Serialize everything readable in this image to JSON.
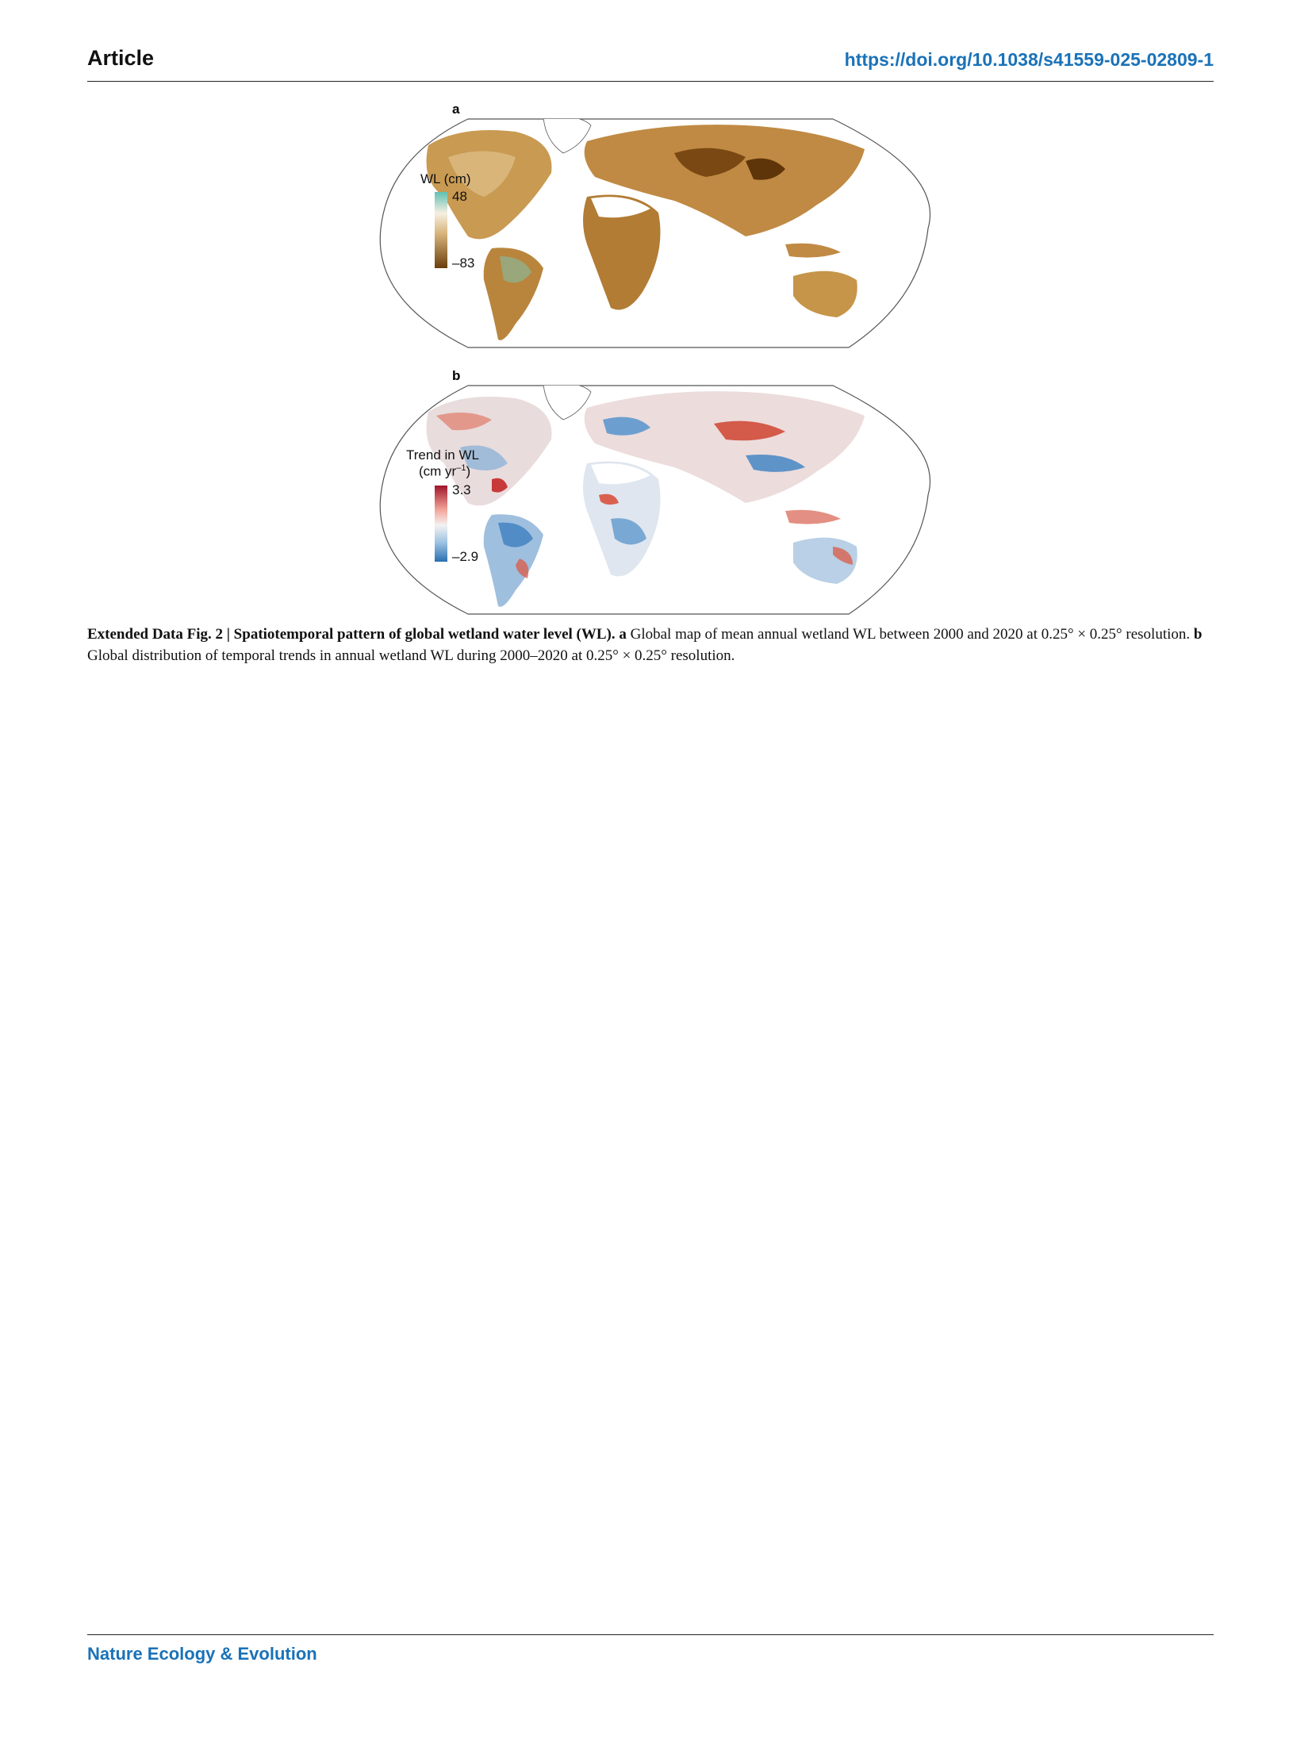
{
  "header": {
    "section": "Article",
    "doi": "https://doi.org/10.1038/s41559-025-02809-1"
  },
  "figure": {
    "panel_a": {
      "letter": "a",
      "legend_title": "WL (cm)",
      "legend_max": "48",
      "legend_min": "–83",
      "colors": {
        "high": "#5fc1b2",
        "mid": "#f6efe1",
        "low": "#6b3e0c"
      }
    },
    "panel_b": {
      "letter": "b",
      "legend_title_line1": "Trend in WL",
      "legend_title_line2": "(cm yr",
      "legend_title_sup": "–1",
      "legend_title_close": ")",
      "legend_max": "3.3",
      "legend_min": "–2.9",
      "colors": {
        "high": "#a0142a",
        "mid": "#f4f2f2",
        "low": "#2a6fb0"
      }
    }
  },
  "caption": {
    "label": "Extended Data Fig. 2 | Spatiotemporal pattern of global wetland water level (WL).",
    "a_label": "a",
    "a_text": " Global map of mean annual wetland WL between 2000 and 2020 at 0.25° × 0.25° resolution. ",
    "b_label": "b",
    "b_text": " Global distribution of temporal trends in annual wetland WL during 2000–2020 at 0.25° × 0.25° resolution."
  },
  "footer": {
    "journal": "Nature Ecology & Evolution"
  }
}
